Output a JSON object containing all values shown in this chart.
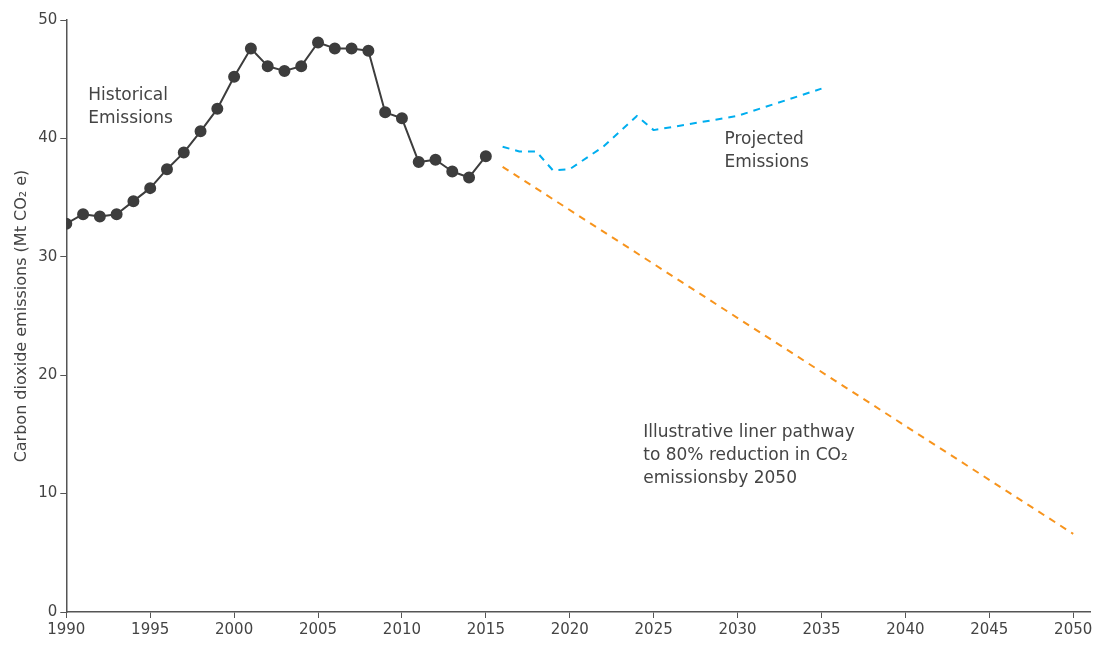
{
  "chart_data": {
    "type": "line",
    "ylabel": "Carbon dioxide emissions (Mt CO₂ e)",
    "xlim": [
      1990,
      2051
    ],
    "xticks": [
      1990,
      1995,
      2000,
      2005,
      2010,
      2015,
      2020,
      2025,
      2030,
      2035,
      2040,
      2045,
      2050
    ],
    "ylim": [
      0,
      50
    ],
    "yticks": [
      0,
      10,
      20,
      30,
      40,
      50
    ],
    "grid": false,
    "legend": false,
    "series": [
      {
        "name": "Historical Emissions",
        "color": "#3d3d3d",
        "marker": "circle",
        "line_style": "solid",
        "x": [
          1990,
          1991,
          1992,
          1993,
          1994,
          1995,
          1996,
          1997,
          1998,
          1999,
          2000,
          2001,
          2002,
          2003,
          2004,
          2005,
          2006,
          2007,
          2008,
          2009,
          2010,
          2011,
          2012,
          2013,
          2014,
          2015
        ],
        "values": [
          32.8,
          33.6,
          33.4,
          33.6,
          34.7,
          35.8,
          37.4,
          38.8,
          40.6,
          42.5,
          45.2,
          47.6,
          46.1,
          45.7,
          46.1,
          48.1,
          47.6,
          47.6,
          47.4,
          42.2,
          41.7,
          38.0,
          38.2,
          37.2,
          36.7,
          38.5
        ]
      },
      {
        "name": "Projected Emissions",
        "color": "#00aeef",
        "marker": "none",
        "line_style": "dashed",
        "x": [
          2016,
          2017,
          2018,
          2019,
          2020,
          2022,
          2024,
          2025,
          2030,
          2035
        ],
        "values": [
          39.3,
          38.9,
          38.9,
          37.3,
          37.4,
          39.3,
          41.9,
          40.7,
          41.9,
          44.2
        ]
      },
      {
        "name": "Illustrative liner pathway to 80% reduction in CO₂ emissionsby 2050",
        "color": "#f7941d",
        "marker": "none",
        "line_style": "dashed",
        "x": [
          2016,
          2050
        ],
        "values": [
          37.6,
          6.6
        ]
      }
    ]
  }
}
